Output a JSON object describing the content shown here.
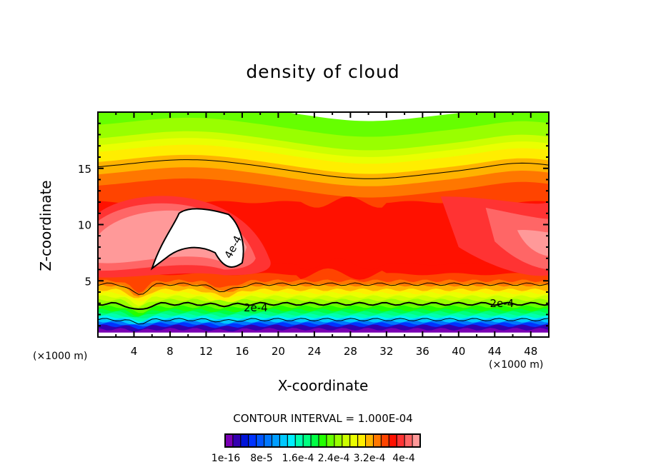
{
  "chart_data": {
    "type": "heatmap",
    "subtype": "filled-contour",
    "title": "density of cloud",
    "xlabel": "X-coordinate",
    "ylabel": "Z-coordinate",
    "x_unit_label": "(×1000 m)",
    "y_unit_label": "(×1000 m)",
    "xlim": [
      0,
      50
    ],
    "ylim": [
      0,
      20
    ],
    "x_ticks": [
      4,
      8,
      12,
      16,
      20,
      24,
      28,
      32,
      36,
      40,
      44,
      48
    ],
    "y_ticks": [
      5,
      10,
      15
    ],
    "contour_interval_text": "CONTOUR INTERVAL = 1.000E-04",
    "contour_labels": [
      {
        "text": "4e-4",
        "x": 15,
        "z": 8
      },
      {
        "text": "2e-4",
        "x": 17.5,
        "z": 2.6
      },
      {
        "text": "2e-4",
        "x": 44.8,
        "z": 3.0
      }
    ],
    "colorbar": {
      "colors": [
        "#7a00b4",
        "#3300b0",
        "#0014d8",
        "#0033ff",
        "#0055ff",
        "#0077ff",
        "#009dff",
        "#00c8ff",
        "#00f0ff",
        "#00ffb0",
        "#00ff80",
        "#00ff44",
        "#22ff00",
        "#66ff00",
        "#99ff00",
        "#ccff00",
        "#eaff00",
        "#ffee00",
        "#ffb300",
        "#ff7700",
        "#ff4400",
        "#ff1100",
        "#ff3333",
        "#ff6666",
        "#ff9999"
      ],
      "tick_labels": [
        "1e-16",
        "8e-5",
        "1.6e-4",
        "2.4e-4",
        "3.2e-4",
        "4e-4"
      ],
      "tick_values": [
        1e-16,
        8e-05,
        0.00016,
        0.00024,
        0.00032,
        0.0004
      ]
    },
    "bands": [
      {
        "level_index": 13,
        "z_top": 20
      },
      {
        "level_index": 14,
        "z_top": 18.6
      },
      {
        "level_index": 15,
        "z_top": 17.4
      },
      {
        "level_index": 16,
        "z_top": 16.8
      },
      {
        "level_index": 17,
        "z_top": 16.2
      },
      {
        "level_index": 18,
        "z_top": 15.3
      },
      {
        "level_index": 19,
        "z_top": 14.2
      },
      {
        "level_index": 20,
        "z_top": 13.2
      },
      {
        "level_index": 21,
        "z_top": 12.0
      },
      {
        "level_index": 21,
        "z_top": 6.5
      },
      {
        "level_index": 20,
        "z_top": 5.6
      },
      {
        "level_index": 19,
        "z_top": 5.0
      },
      {
        "level_index": 18,
        "z_top": 4.6
      },
      {
        "level_index": 17,
        "z_top": 4.2
      },
      {
        "level_index": 16,
        "z_top": 3.9
      },
      {
        "level_index": 15,
        "z_top": 3.6
      },
      {
        "level_index": 14,
        "z_top": 3.3
      },
      {
        "level_index": 13,
        "z_top": 3.0
      },
      {
        "level_index": 12,
        "z_top": 2.7
      },
      {
        "level_index": 11,
        "z_top": 2.4
      },
      {
        "level_index": 10,
        "z_top": 2.2
      },
      {
        "level_index": 9,
        "z_top": 2.0
      },
      {
        "level_index": 8,
        "z_top": 1.8
      },
      {
        "level_index": 7,
        "z_top": 1.6
      },
      {
        "level_index": 5,
        "z_top": 1.4
      },
      {
        "level_index": 3,
        "z_top": 1.2
      },
      {
        "level_index": 1,
        "z_top": 1.0
      },
      {
        "level_index": 0,
        "z_top": 0.7
      }
    ]
  }
}
